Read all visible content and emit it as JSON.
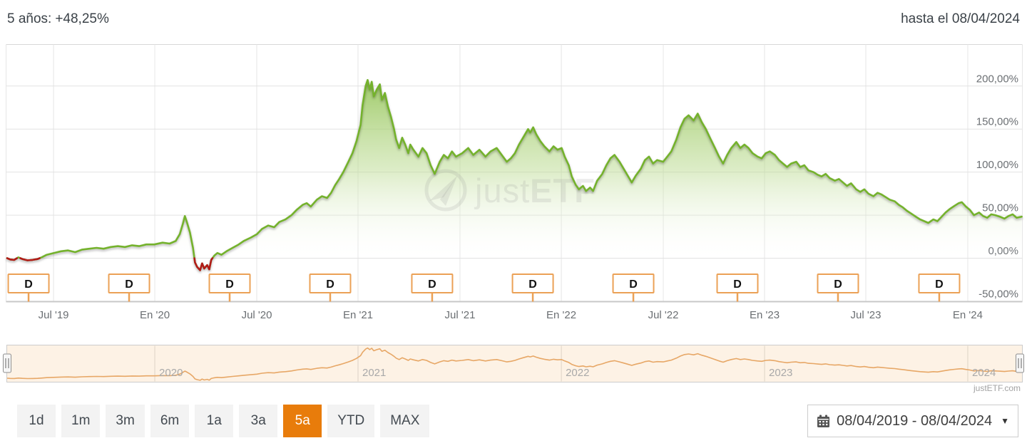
{
  "header": {
    "left_label": "5 años:",
    "left_value": "+48,25%",
    "right_text": "hasta el 08/04/2024"
  },
  "footer_brand": "justETF.com",
  "watermark": {
    "text_regular": "just",
    "text_bold": "ETF"
  },
  "range_buttons": [
    {
      "label": "1d",
      "active": false
    },
    {
      "label": "1m",
      "active": false
    },
    {
      "label": "3m",
      "active": false
    },
    {
      "label": "6m",
      "active": false
    },
    {
      "label": "1a",
      "active": false
    },
    {
      "label": "3a",
      "active": false
    },
    {
      "label": "5a",
      "active": true
    },
    {
      "label": "YTD",
      "active": false
    },
    {
      "label": "MAX",
      "active": false
    }
  ],
  "datepicker": {
    "value": "08/04/2019 - 08/04/2024",
    "caret": "▼"
  },
  "colors": {
    "line_green": "#74b22c",
    "negative_red": "#b11a17",
    "area_top": "#8cc04b",
    "dividend_orange": "#eba156",
    "active_button_bg": "#e87c0b",
    "navigator_line": "#e7a766",
    "navigator_bg": "#fdf2e5",
    "axis_text": "#6b6f73",
    "header_green": "#72ae26"
  },
  "chart_data": {
    "type": "area",
    "title": "5 años: +48,25%",
    "x_range": [
      "08/04/2019",
      "08/04/2024"
    ],
    "t_meaning": "fraction along x_range (0 = 08/04/2019, 1 = 08/04/2024)",
    "y_axis": {
      "unit": "%",
      "min": -50,
      "max": 250,
      "ticks": [
        {
          "v": 200,
          "label": "200,00%"
        },
        {
          "v": 150,
          "label": "150,00%"
        },
        {
          "v": 100,
          "label": "100,00%"
        },
        {
          "v": 50,
          "label": "50,00%"
        },
        {
          "v": 0,
          "label": "0,00%"
        },
        {
          "v": -50,
          "label": "-50,00%"
        }
      ]
    },
    "x_ticks": [
      {
        "label": "Jul '19",
        "t": 0.0457
      },
      {
        "label": "En '20",
        "t": 0.1454
      },
      {
        "label": "Jul '20",
        "t": 0.2458
      },
      {
        "label": "En '21",
        "t": 0.3455
      },
      {
        "label": "Jul '21",
        "t": 0.4459
      },
      {
        "label": "En '22",
        "t": 0.5457
      },
      {
        "label": "Jul '22",
        "t": 0.6461
      },
      {
        "label": "En '23",
        "t": 0.7458
      },
      {
        "label": "Jul '23",
        "t": 0.8455
      },
      {
        "label": "En '24",
        "t": 0.9459
      }
    ],
    "dividends": {
      "marker_label": "D",
      "t": [
        0.0211,
        0.1201,
        0.2191,
        0.3181,
        0.4185,
        0.5176,
        0.6166,
        0.7191,
        0.8181,
        0.9178
      ]
    },
    "navigator": {
      "years": [
        {
          "label": "2020",
          "t": 0.1454
        },
        {
          "label": "2021",
          "t": 0.3455
        },
        {
          "label": "2022",
          "t": 0.5457
        },
        {
          "label": "2023",
          "t": 0.7458
        },
        {
          "label": "2024",
          "t": 0.9459
        }
      ]
    },
    "series": [
      {
        "name": "performance",
        "threshold": 0,
        "points": [
          [
            0.0,
            0
          ],
          [
            0.003,
            -1.5
          ],
          [
            0.007,
            -2
          ],
          [
            0.011,
            1
          ],
          [
            0.015,
            -1
          ],
          [
            0.02,
            -2.5
          ],
          [
            0.025,
            -2
          ],
          [
            0.03,
            -1
          ],
          [
            0.034,
            1
          ],
          [
            0.039,
            4
          ],
          [
            0.046,
            6
          ],
          [
            0.053,
            8
          ],
          [
            0.06,
            9
          ],
          [
            0.067,
            7
          ],
          [
            0.074,
            10
          ],
          [
            0.081,
            11
          ],
          [
            0.088,
            12
          ],
          [
            0.095,
            11
          ],
          [
            0.102,
            13
          ],
          [
            0.109,
            14
          ],
          [
            0.116,
            13
          ],
          [
            0.123,
            15
          ],
          [
            0.13,
            14
          ],
          [
            0.137,
            16
          ],
          [
            0.145,
            16
          ],
          [
            0.153,
            18
          ],
          [
            0.16,
            17
          ],
          [
            0.166,
            20
          ],
          [
            0.17,
            28
          ],
          [
            0.173,
            40
          ],
          [
            0.175,
            49
          ],
          [
            0.177,
            42
          ],
          [
            0.18,
            30
          ],
          [
            0.183,
            12
          ],
          [
            0.185,
            -5
          ],
          [
            0.187,
            -10
          ],
          [
            0.19,
            -14
          ],
          [
            0.192,
            -6
          ],
          [
            0.194,
            -12
          ],
          [
            0.197,
            -8
          ],
          [
            0.199,
            -13
          ],
          [
            0.201,
            -2
          ],
          [
            0.204,
            3
          ],
          [
            0.207,
            6
          ],
          [
            0.211,
            4
          ],
          [
            0.216,
            8
          ],
          [
            0.222,
            12
          ],
          [
            0.228,
            16
          ],
          [
            0.233,
            20
          ],
          [
            0.24,
            24
          ],
          [
            0.246,
            28
          ],
          [
            0.251,
            34
          ],
          [
            0.257,
            38
          ],
          [
            0.263,
            36
          ],
          [
            0.268,
            42
          ],
          [
            0.274,
            45
          ],
          [
            0.28,
            50
          ],
          [
            0.285,
            56
          ],
          [
            0.291,
            62
          ],
          [
            0.295,
            64
          ],
          [
            0.299,
            60
          ],
          [
            0.305,
            68
          ],
          [
            0.31,
            72
          ],
          [
            0.315,
            70
          ],
          [
            0.319,
            76
          ],
          [
            0.323,
            85
          ],
          [
            0.327,
            92
          ],
          [
            0.331,
            100
          ],
          [
            0.336,
            112
          ],
          [
            0.34,
            122
          ],
          [
            0.344,
            136
          ],
          [
            0.348,
            155
          ],
          [
            0.35,
            178
          ],
          [
            0.353,
            200
          ],
          [
            0.355,
            207
          ],
          [
            0.357,
            196
          ],
          [
            0.359,
            205
          ],
          [
            0.361,
            188
          ],
          [
            0.364,
            196
          ],
          [
            0.367,
            202
          ],
          [
            0.369,
            184
          ],
          [
            0.372,
            192
          ],
          [
            0.375,
            176
          ],
          [
            0.378,
            164
          ],
          [
            0.381,
            150
          ],
          [
            0.383,
            138
          ],
          [
            0.386,
            128
          ],
          [
            0.389,
            140
          ],
          [
            0.392,
            132
          ],
          [
            0.395,
            122
          ],
          [
            0.397,
            132
          ],
          [
            0.4,
            126
          ],
          [
            0.405,
            118
          ],
          [
            0.409,
            128
          ],
          [
            0.413,
            122
          ],
          [
            0.417,
            108
          ],
          [
            0.421,
            98
          ],
          [
            0.426,
            112
          ],
          [
            0.43,
            120
          ],
          [
            0.434,
            116
          ],
          [
            0.438,
            124
          ],
          [
            0.442,
            118
          ],
          [
            0.448,
            122
          ],
          [
            0.454,
            128
          ],
          [
            0.459,
            120
          ],
          [
            0.465,
            126
          ],
          [
            0.471,
            118
          ],
          [
            0.476,
            124
          ],
          [
            0.482,
            128
          ],
          [
            0.487,
            120
          ],
          [
            0.492,
            112
          ],
          [
            0.496,
            116
          ],
          [
            0.5,
            122
          ],
          [
            0.504,
            132
          ],
          [
            0.508,
            140
          ],
          [
            0.513,
            150
          ],
          [
            0.515,
            146
          ],
          [
            0.518,
            152
          ],
          [
            0.521,
            144
          ],
          [
            0.525,
            136
          ],
          [
            0.529,
            130
          ],
          [
            0.534,
            124
          ],
          [
            0.538,
            130
          ],
          [
            0.542,
            126
          ],
          [
            0.546,
            128
          ],
          [
            0.549,
            118
          ],
          [
            0.553,
            108
          ],
          [
            0.556,
            95
          ],
          [
            0.56,
            85
          ],
          [
            0.563,
            80
          ],
          [
            0.567,
            84
          ],
          [
            0.57,
            78
          ],
          [
            0.574,
            82
          ],
          [
            0.577,
            78
          ],
          [
            0.581,
            90
          ],
          [
            0.586,
            98
          ],
          [
            0.59,
            108
          ],
          [
            0.594,
            116
          ],
          [
            0.598,
            120
          ],
          [
            0.603,
            112
          ],
          [
            0.607,
            104
          ],
          [
            0.611,
            96
          ],
          [
            0.615,
            88
          ],
          [
            0.619,
            96
          ],
          [
            0.624,
            104
          ],
          [
            0.628,
            114
          ],
          [
            0.632,
            118
          ],
          [
            0.636,
            110
          ],
          [
            0.64,
            114
          ],
          [
            0.646,
            112
          ],
          [
            0.65,
            118
          ],
          [
            0.654,
            124
          ],
          [
            0.659,
            138
          ],
          [
            0.663,
            152
          ],
          [
            0.667,
            162
          ],
          [
            0.671,
            166
          ],
          [
            0.676,
            160
          ],
          [
            0.68,
            168
          ],
          [
            0.684,
            158
          ],
          [
            0.688,
            150
          ],
          [
            0.692,
            140
          ],
          [
            0.697,
            128
          ],
          [
            0.701,
            118
          ],
          [
            0.705,
            110
          ],
          [
            0.709,
            120
          ],
          [
            0.713,
            128
          ],
          [
            0.718,
            135
          ],
          [
            0.722,
            128
          ],
          [
            0.726,
            132
          ],
          [
            0.73,
            128
          ],
          [
            0.734,
            122
          ],
          [
            0.739,
            118
          ],
          [
            0.743,
            116
          ],
          [
            0.747,
            122
          ],
          [
            0.751,
            124
          ],
          [
            0.756,
            120
          ],
          [
            0.76,
            114
          ],
          [
            0.764,
            110
          ],
          [
            0.768,
            106
          ],
          [
            0.772,
            110
          ],
          [
            0.777,
            112
          ],
          [
            0.781,
            106
          ],
          [
            0.785,
            108
          ],
          [
            0.789,
            102
          ],
          [
            0.794,
            100
          ],
          [
            0.798,
            97
          ],
          [
            0.802,
            95
          ],
          [
            0.806,
            98
          ],
          [
            0.81,
            93
          ],
          [
            0.815,
            90
          ],
          [
            0.819,
            92
          ],
          [
            0.823,
            88
          ],
          [
            0.827,
            84
          ],
          [
            0.831,
            87
          ],
          [
            0.836,
            80
          ],
          [
            0.84,
            77
          ],
          [
            0.844,
            80
          ],
          [
            0.848,
            75
          ],
          [
            0.853,
            72
          ],
          [
            0.857,
            76
          ],
          [
            0.861,
            74
          ],
          [
            0.865,
            71
          ],
          [
            0.869,
            68
          ],
          [
            0.874,
            66
          ],
          [
            0.878,
            62
          ],
          [
            0.882,
            59
          ],
          [
            0.886,
            55
          ],
          [
            0.89,
            52
          ],
          [
            0.895,
            48
          ],
          [
            0.899,
            45
          ],
          [
            0.903,
            43
          ],
          [
            0.907,
            41
          ],
          [
            0.912,
            45
          ],
          [
            0.916,
            43
          ],
          [
            0.92,
            48
          ],
          [
            0.924,
            53
          ],
          [
            0.928,
            57
          ],
          [
            0.933,
            61
          ],
          [
            0.937,
            64
          ],
          [
            0.94,
            65
          ],
          [
            0.944,
            60
          ],
          [
            0.948,
            56
          ],
          [
            0.952,
            50
          ],
          [
            0.957,
            53
          ],
          [
            0.961,
            49
          ],
          [
            0.965,
            47
          ],
          [
            0.969,
            51
          ],
          [
            0.973,
            50
          ],
          [
            0.978,
            48
          ],
          [
            0.982,
            46
          ],
          [
            0.986,
            49
          ],
          [
            0.99,
            51
          ],
          [
            0.994,
            47
          ],
          [
            0.999,
            48.25
          ]
        ]
      }
    ]
  }
}
